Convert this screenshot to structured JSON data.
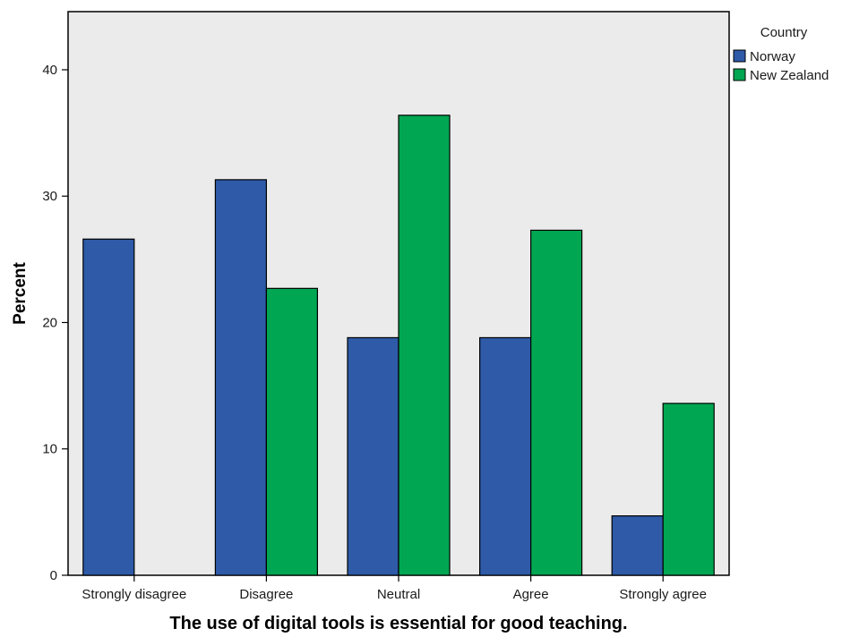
{
  "chart_data": {
    "type": "bar",
    "categories": [
      "Strongly disagree",
      "Disagree",
      "Neutral",
      "Agree",
      "Strongly agree"
    ],
    "series": [
      {
        "name": "Norway",
        "values": [
          26.6,
          31.3,
          18.8,
          18.8,
          4.7
        ]
      },
      {
        "name": "New Zealand",
        "values": [
          0,
          22.7,
          36.4,
          27.3,
          13.6
        ]
      }
    ],
    "title": "",
    "xlabel": "The use of digital tools is essential for good teaching.",
    "ylabel": "Percent",
    "ylim": [
      0,
      44.6
    ],
    "yticks": [
      0,
      10,
      20,
      30,
      40
    ],
    "grid": false,
    "legend": {
      "title": "Country",
      "position": "top-right outside plot"
    },
    "colors": {
      "Norway": "#2e5aa8",
      "New Zealand": "#00a651",
      "plot_background": "#ebebeb"
    }
  }
}
